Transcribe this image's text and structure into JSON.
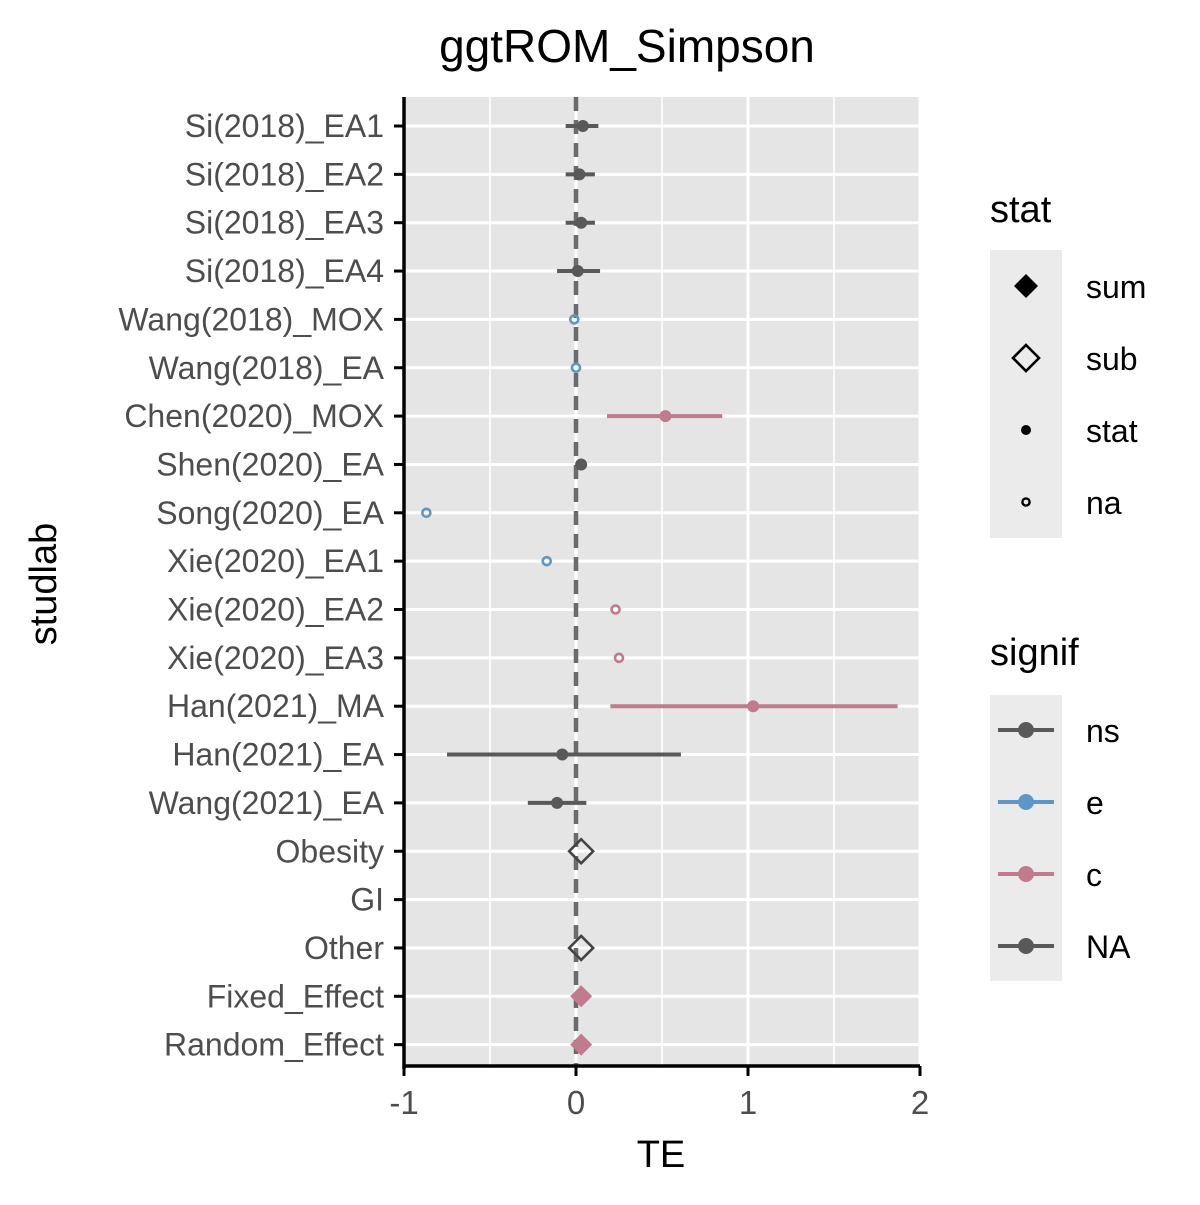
{
  "chart_data": {
    "type": "forest",
    "title": "ggtROM_Simpson",
    "xlabel": "TE",
    "ylabel": "studlab",
    "xlim": [
      -1,
      2
    ],
    "xticks": [
      -1,
      0,
      1,
      2
    ],
    "xtick_labels": [
      "-1",
      "0",
      "1",
      "2"
    ],
    "reference_line_x": 0,
    "grid": true,
    "background": "#e5e5e5",
    "colors": {
      "ns": "#595959",
      "e": "#5e97c6",
      "c": "#c07b8c",
      "NA": "#595959",
      "sub_outline": "#444444"
    },
    "rows": [
      {
        "label": "Si(2018)_EA1",
        "te": 0.04,
        "lower": -0.06,
        "upper": 0.13,
        "stat": "stat",
        "signif": "ns"
      },
      {
        "label": "Si(2018)_EA2",
        "te": 0.02,
        "lower": -0.06,
        "upper": 0.11,
        "stat": "stat",
        "signif": "ns"
      },
      {
        "label": "Si(2018)_EA3",
        "te": 0.03,
        "lower": -0.06,
        "upper": 0.11,
        "stat": "stat",
        "signif": "ns"
      },
      {
        "label": "Si(2018)_EA4",
        "te": 0.01,
        "lower": -0.11,
        "upper": 0.14,
        "stat": "stat",
        "signif": "ns"
      },
      {
        "label": "Wang(2018)_MOX",
        "te": -0.01,
        "lower": null,
        "upper": null,
        "stat": "na",
        "signif": "e"
      },
      {
        "label": "Wang(2018)_EA",
        "te": 0.0,
        "lower": null,
        "upper": null,
        "stat": "na",
        "signif": "e"
      },
      {
        "label": "Chen(2020)_MOX",
        "te": 0.52,
        "lower": 0.18,
        "upper": 0.85,
        "stat": "stat",
        "signif": "c"
      },
      {
        "label": "Shen(2020)_EA",
        "te": 0.03,
        "lower": 0.01,
        "upper": 0.05,
        "stat": "stat",
        "signif": "ns"
      },
      {
        "label": "Song(2020)_EA",
        "te": -0.87,
        "lower": null,
        "upper": null,
        "stat": "na",
        "signif": "e"
      },
      {
        "label": "Xie(2020)_EA1",
        "te": -0.17,
        "lower": null,
        "upper": null,
        "stat": "na",
        "signif": "e"
      },
      {
        "label": "Xie(2020)_EA2",
        "te": 0.23,
        "lower": null,
        "upper": null,
        "stat": "na",
        "signif": "c"
      },
      {
        "label": "Xie(2020)_EA3",
        "te": 0.25,
        "lower": null,
        "upper": null,
        "stat": "na",
        "signif": "c"
      },
      {
        "label": "Han(2021)_MA",
        "te": 1.03,
        "lower": 0.2,
        "upper": 1.87,
        "stat": "stat",
        "signif": "c"
      },
      {
        "label": "Han(2021)_EA",
        "te": -0.08,
        "lower": -0.75,
        "upper": 0.61,
        "stat": "stat",
        "signif": "ns"
      },
      {
        "label": "Wang(2021)_EA",
        "te": -0.11,
        "lower": -0.28,
        "upper": 0.06,
        "stat": "stat",
        "signif": "ns"
      },
      {
        "label": "Obesity",
        "te": 0.03,
        "lower": null,
        "upper": null,
        "stat": "sub",
        "signif": "NA"
      },
      {
        "label": "GI",
        "te": null,
        "lower": null,
        "upper": null,
        "stat": null,
        "signif": null
      },
      {
        "label": "Other",
        "te": 0.03,
        "lower": null,
        "upper": null,
        "stat": "sub",
        "signif": "NA"
      },
      {
        "label": "Fixed_Effect",
        "te": 0.03,
        "lower": null,
        "upper": null,
        "stat": "sum",
        "signif": "c"
      },
      {
        "label": "Random_Effect",
        "te": 0.03,
        "lower": null,
        "upper": null,
        "stat": "sum",
        "signif": "c"
      }
    ],
    "legends": [
      {
        "title": "stat",
        "entries": [
          {
            "label": "sum",
            "shape": "diamond-filled"
          },
          {
            "label": "sub",
            "shape": "diamond-open"
          },
          {
            "label": "stat",
            "shape": "dot-filled"
          },
          {
            "label": "na",
            "shape": "dot-open"
          }
        ]
      },
      {
        "title": "signif",
        "entries": [
          {
            "label": "ns",
            "color": "#595959"
          },
          {
            "label": "e",
            "color": "#5e97c6"
          },
          {
            "label": "c",
            "color": "#c07b8c"
          },
          {
            "label": "NA",
            "color": "#595959"
          }
        ]
      }
    ]
  }
}
